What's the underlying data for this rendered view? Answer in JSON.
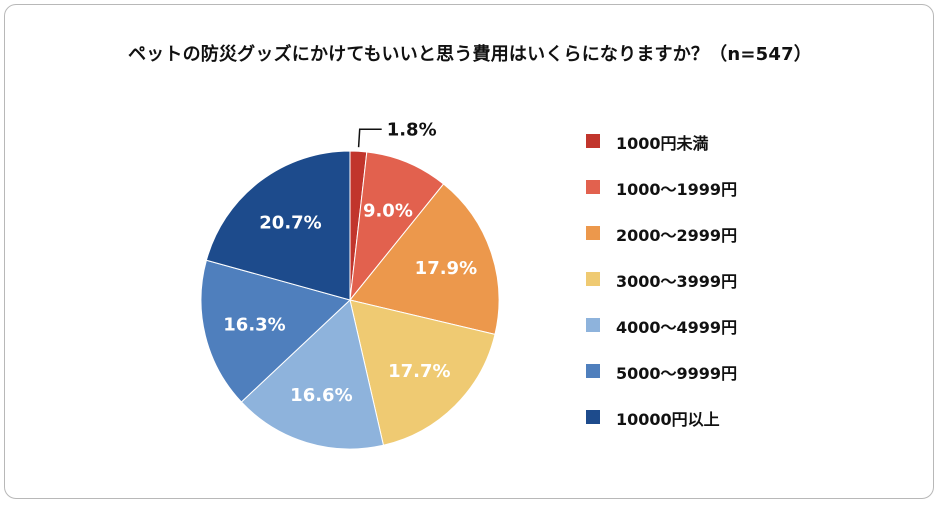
{
  "chart_data": {
    "type": "pie",
    "title": "ペットの防災グッズにかけてもいいと思う費用はいくらになりますか？（n=547）",
    "categories": [
      "1000円未満",
      "1000〜1999円",
      "2000〜2999円",
      "3000〜3999円",
      "4000〜4999円",
      "5000〜9999円",
      "10000円以上"
    ],
    "values": [
      1.8,
      9.0,
      17.9,
      17.7,
      16.6,
      16.3,
      20.7
    ],
    "value_labels": [
      "1.8%",
      "9.0%",
      "17.9%",
      "17.7%",
      "16.6%",
      "16.3%",
      "20.7%"
    ],
    "colors": [
      "#c1352c",
      "#e2614e",
      "#ec984c",
      "#efca72",
      "#8eb3dc",
      "#4f7fbd",
      "#1d4b8c"
    ],
    "label_colors": [
      "#111111",
      "#ffffff",
      "#ffffff",
      "#ffffff",
      "#ffffff",
      "#ffffff",
      "#ffffff"
    ],
    "start_angle": "12 o'clock, clockwise",
    "legend_position": "right"
  }
}
